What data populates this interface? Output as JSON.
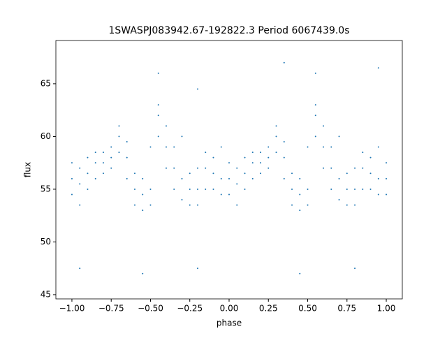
{
  "chart_data": {
    "type": "scatter",
    "title": "1SWASPJ083942.67-192822.3 Period 6067439.0s",
    "xlabel": "phase",
    "ylabel": "flux",
    "color": "#1f77b4",
    "xlim": [
      -1.102,
      1.102
    ],
    "ylim": [
      44.6,
      69.1
    ],
    "xticks": [
      {
        "value": -1,
        "label": "−1.00"
      },
      {
        "value": -0.75,
        "label": "−0.75"
      },
      {
        "value": -0.5,
        "label": "−0.50"
      },
      {
        "value": -0.25,
        "label": "−0.25"
      },
      {
        "value": 0,
        "label": "0.00"
      },
      {
        "value": 0.25,
        "label": "0.25"
      },
      {
        "value": 0.5,
        "label": "0.50"
      },
      {
        "value": 0.75,
        "label": "0.75"
      },
      {
        "value": 1,
        "label": "1.00"
      }
    ],
    "yticks": [
      45,
      50,
      55,
      60,
      65
    ],
    "x": [
      -1,
      -1,
      -1,
      -0.95,
      -0.95,
      -0.95,
      -0.9,
      -0.9,
      -0.9,
      -0.85,
      -0.85,
      -0.85,
      -0.8,
      -0.8,
      -0.8,
      -0.75,
      -0.75,
      -0.75,
      -0.7,
      -0.7,
      -0.7,
      -0.65,
      -0.65,
      -0.65,
      -0.6,
      -0.6,
      -0.6,
      -0.55,
      -0.55,
      -0.55,
      -0.5,
      -0.5,
      -0.5,
      -0.45,
      -0.45,
      -0.45,
      -0.4,
      -0.4,
      -0.4,
      -0.35,
      -0.35,
      -0.35,
      -0.3,
      -0.3,
      -0.3,
      -0.25,
      -0.25,
      -0.25,
      -0.2,
      -0.2,
      -0.2,
      -0.15,
      -0.15,
      -0.15,
      -0.1,
      -0.1,
      -0.1,
      -0.05,
      -0.05,
      -0.05,
      0,
      0,
      0,
      0.05,
      0.05,
      0.05,
      0.1,
      0.1,
      0.1,
      0.15,
      0.15,
      0.15,
      0.2,
      0.2,
      0.2,
      0.25,
      0.25,
      0.25,
      0.3,
      0.3,
      0.3,
      0.35,
      0.35,
      0.35,
      0.4,
      0.4,
      0.4,
      0.45,
      0.45,
      0.45,
      0.5,
      0.5,
      0.5,
      0.55,
      0.55,
      0.55,
      0.6,
      0.6,
      0.6,
      0.65,
      0.65,
      0.65,
      0.7,
      0.7,
      0.7,
      0.75,
      0.75,
      0.75,
      0.8,
      0.8,
      0.8,
      0.85,
      0.85,
      0.85,
      0.9,
      0.9,
      0.9,
      0.95,
      0.95,
      0.95,
      1,
      1,
      1,
      -0.55,
      0.45,
      -0.2,
      0.8,
      -0.95,
      0.55,
      -0.45,
      -0.2,
      0.35,
      0.95
    ],
    "values": [
      56,
      57.5,
      54.5,
      55.5,
      57,
      53.5,
      56.5,
      58,
      55,
      57.5,
      58.5,
      56,
      57.5,
      58.5,
      56.5,
      58,
      59,
      57,
      60,
      61,
      58.5,
      58,
      59.5,
      56,
      55,
      56.5,
      53.5,
      54.5,
      56,
      53,
      55,
      59,
      53.5,
      62,
      63,
      60,
      59,
      61,
      57,
      57,
      59,
      55,
      56,
      60,
      54,
      55,
      56.5,
      53.5,
      55,
      57,
      53.5,
      57,
      58.5,
      55,
      56.5,
      58,
      55,
      56,
      59,
      54.5,
      56,
      57.5,
      54.5,
      55.5,
      57,
      53.5,
      56.5,
      58,
      55,
      57.5,
      58.5,
      56,
      57.5,
      58.5,
      56.5,
      58,
      59,
      57,
      60,
      61,
      58.5,
      58,
      59.5,
      56,
      55,
      56.5,
      53.5,
      54.5,
      56,
      53,
      55,
      59,
      53.5,
      62,
      63,
      60,
      59,
      61,
      57,
      57,
      59,
      55,
      56,
      60,
      54,
      55,
      56.5,
      53.5,
      55,
      57,
      53.5,
      57,
      58.5,
      55,
      56.5,
      58,
      55,
      56,
      59,
      54.5,
      56,
      57.5,
      54.5,
      47,
      47,
      47.5,
      47.5,
      47.5,
      66,
      66,
      64.5,
      67,
      66.5
    ]
  }
}
